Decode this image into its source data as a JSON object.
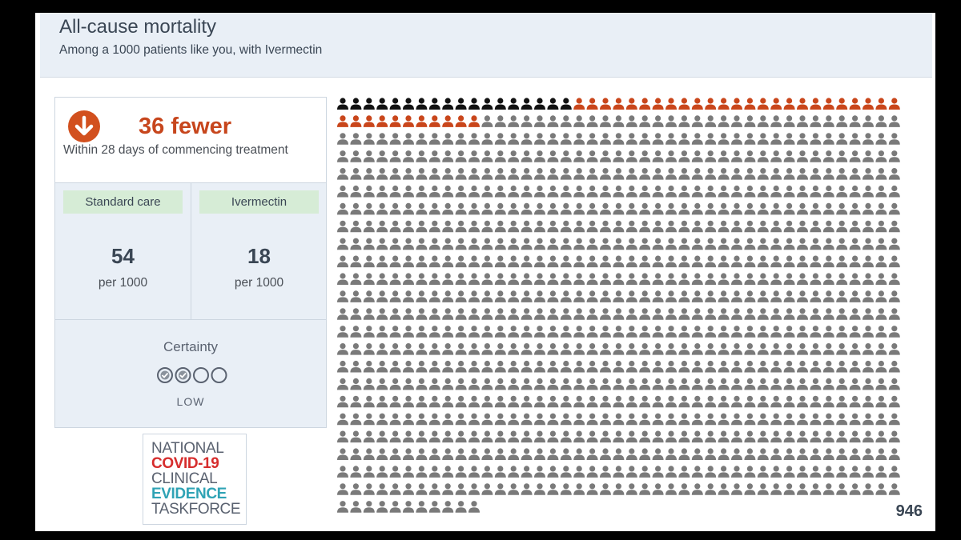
{
  "header": {
    "title": "All-cause mortality",
    "subtitle": "Among a 1000 patients like you, with Ivermectin",
    "collapse_icon": "chevron-up-icon"
  },
  "effect": {
    "icon": "arrow-down-icon",
    "value": "36 fewer",
    "description": "Within 28 days of commencing treatment"
  },
  "comparison": {
    "standard_care": {
      "label": "Standard care",
      "value": "54",
      "unit": "per 1000"
    },
    "ivermectin": {
      "label": "Ivermectin",
      "value": "18",
      "unit": "per 1000"
    }
  },
  "certainty": {
    "label": "Certainty",
    "level": "LOW",
    "filled": 2,
    "total": 4
  },
  "logo": {
    "line1": "NATIONAL",
    "line2": "COVID-19",
    "line3": "CLINICAL",
    "line4": "EVIDENCE",
    "line5": "TASKFORCE"
  },
  "pictogram": {
    "total": 1000,
    "per_row": 43,
    "groups": [
      {
        "count": 18,
        "color": "#111111"
      },
      {
        "count": 36,
        "color": "#c9461b"
      },
      {
        "count": 946,
        "color": "#7a7a7a"
      }
    ],
    "remaining_label": "946"
  },
  "colors": {
    "accent": "#c7461d",
    "label_bg": "#d6ecd6",
    "panel_bg": "#e9eff6"
  }
}
